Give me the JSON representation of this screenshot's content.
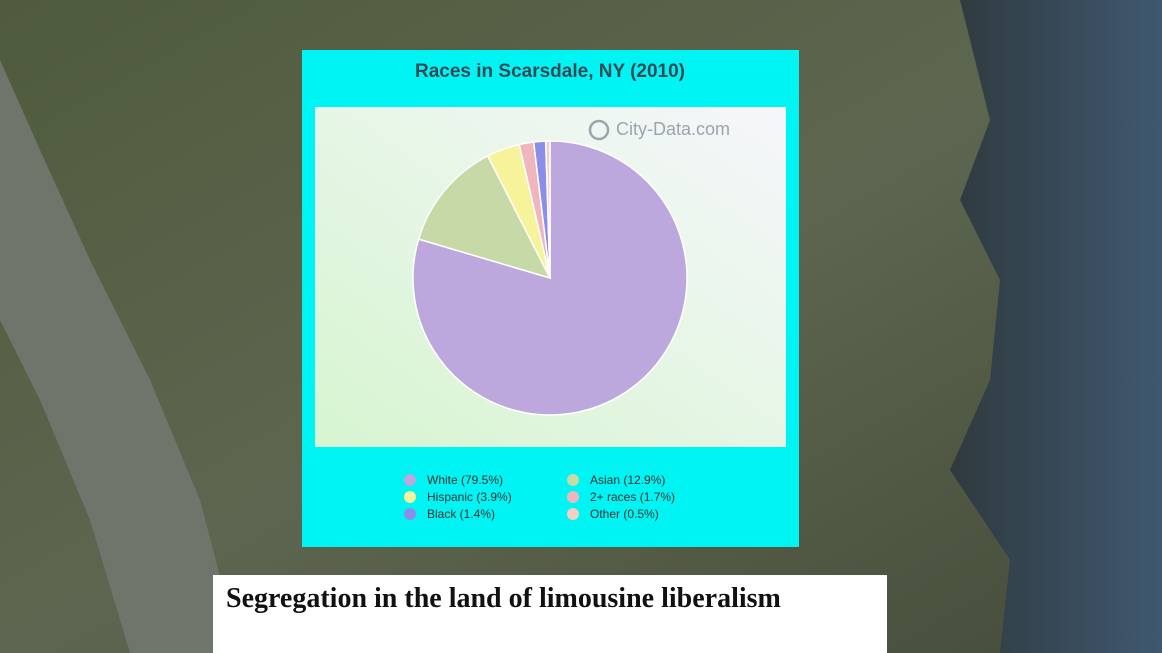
{
  "chart_data": {
    "type": "pie",
    "title": "Races in Scarsdale, NY (2010)",
    "watermark": "City-Data.com",
    "categories": [
      "White (79.5%)",
      "Asian (12.9%)",
      "Hispanic (3.9%)",
      "2+ races (1.7%)",
      "Black (1.4%)",
      "Other (0.5%)"
    ],
    "values": [
      79.5,
      12.9,
      3.9,
      1.7,
      1.4,
      0.5
    ],
    "colors": [
      "#bca8dc",
      "#c6d9a6",
      "#f6f39a",
      "#f0b6be",
      "#8a8ee8",
      "#f3cfc4"
    ]
  },
  "caption": "Segregation in the land of limousine liberalism"
}
